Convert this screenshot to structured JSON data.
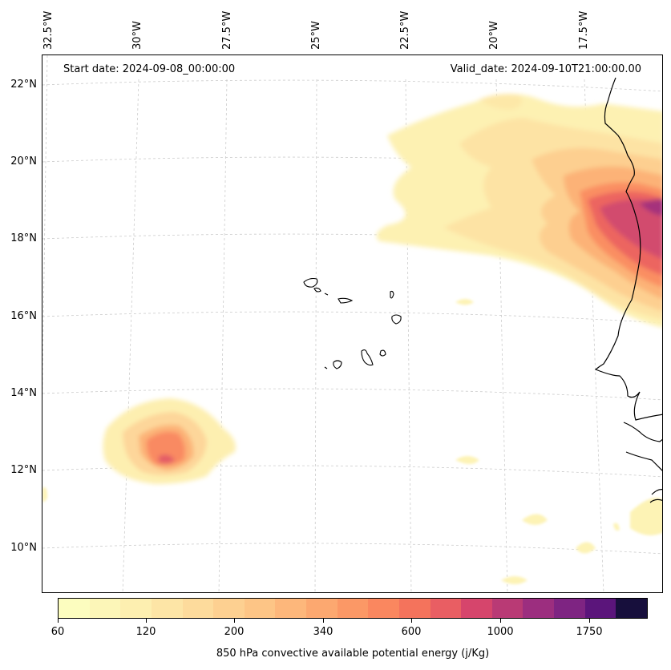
{
  "map": {
    "start_date_text": "Start date: 2024-09-08_00:00:00",
    "valid_date_text": "Valid_date: 2024-09-10T21:00:00.00",
    "variable": "850 hPa convective available potential energy",
    "longitude_labels": [
      "32.5°W",
      "30°W",
      "27.5°W",
      "25°W",
      "22.5°W",
      "20°W",
      "17.5°W"
    ],
    "latitude_labels": [
      "22°N",
      "20°N",
      "18°N",
      "16°N",
      "14°N",
      "12°N",
      "10°N"
    ],
    "colorbar": {
      "title": "850 hPa convective available potential energy (j/Kg)",
      "tick_labels": [
        "60",
        "120",
        "200",
        "340",
        "600",
        "1000",
        "1750"
      ],
      "colors": [
        "#fcfdbf",
        "#fcf6b8",
        "#fdefb0",
        "#fde5a6",
        "#fddb9c",
        "#fdd091",
        "#fdc586",
        "#fdb77b",
        "#fca870",
        "#fb9866",
        "#fa875f",
        "#f4735c",
        "#e95e63",
        "#d6456c",
        "#b93a75",
        "#9c2e7f",
        "#7e2482",
        "#5b157b",
        "#170f3c"
      ]
    },
    "features": [
      "contour-shading",
      "coastline",
      "cape-verde-islands",
      "gridlines"
    ]
  }
}
